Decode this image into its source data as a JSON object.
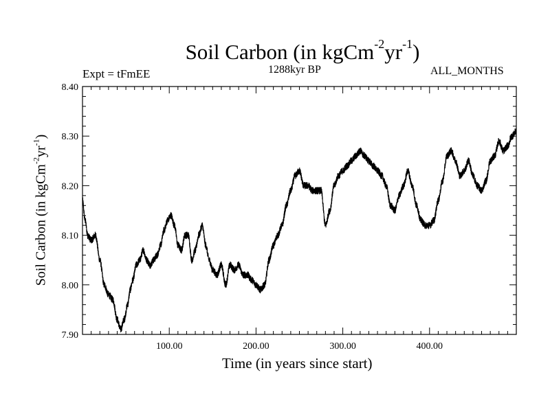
{
  "chart_data": {
    "type": "line",
    "title": "Soil Carbon (in kgCm",
    "title_sup1": "-2",
    "title_mid": "yr",
    "title_sup2": "-1",
    "title_end": ")",
    "experiment": "Expt = tFmEE",
    "subtitle": "1288kyr BP",
    "period": "ALL_MONTHS",
    "xlabel": "Time (in years since start)",
    "ylabel": "Soil Carbon (in kgCm",
    "ylabel_sup1": "-2",
    "ylabel_mid": "yr",
    "ylabel_sup2": "-1",
    "ylabel_end": ")",
    "xlim": [
      0,
      500
    ],
    "ylim": [
      7.9,
      8.4
    ],
    "x_ticks": [
      {
        "value": 100,
        "label": "100.00"
      },
      {
        "value": 200,
        "label": "200.00"
      },
      {
        "value": 300,
        "label": "300.00"
      },
      {
        "value": 400,
        "label": "400.00"
      }
    ],
    "y_ticks": [
      {
        "value": 7.9,
        "label": "7.90"
      },
      {
        "value": 8.0,
        "label": "8.00"
      },
      {
        "value": 8.1,
        "label": "8.10"
      },
      {
        "value": 8.2,
        "label": "8.20"
      },
      {
        "value": 8.3,
        "label": "8.30"
      },
      {
        "value": 8.4,
        "label": "8.40"
      }
    ],
    "noise_amplitude": 0.007,
    "series": [
      {
        "name": "Soil Carbon",
        "x": [
          0,
          3,
          6,
          10,
          15,
          20,
          25,
          30,
          35,
          40,
          44,
          48,
          52,
          55,
          58,
          62,
          66,
          70,
          74,
          78,
          82,
          86,
          90,
          94,
          98,
          102,
          106,
          110,
          114,
          118,
          122,
          126,
          130,
          134,
          138,
          142,
          146,
          150,
          155,
          160,
          165,
          170,
          175,
          180,
          185,
          190,
          195,
          200,
          205,
          210,
          215,
          220,
          225,
          230,
          235,
          240,
          245,
          250,
          255,
          260,
          265,
          270,
          275,
          280,
          285,
          290,
          295,
          300,
          305,
          310,
          315,
          320,
          325,
          330,
          335,
          340,
          345,
          350,
          355,
          360,
          365,
          370,
          375,
          380,
          385,
          390,
          395,
          400,
          405,
          410,
          415,
          420,
          425,
          430,
          435,
          440,
          445,
          450,
          455,
          460,
          465,
          470,
          475,
          480,
          485,
          490,
          495,
          500
        ],
        "values": [
          8.17,
          8.13,
          8.1,
          8.09,
          8.1,
          8.05,
          8.0,
          7.98,
          7.97,
          7.93,
          7.91,
          7.93,
          7.96,
          7.99,
          8.01,
          8.04,
          8.05,
          8.07,
          8.05,
          8.04,
          8.05,
          8.06,
          8.08,
          8.11,
          8.13,
          8.14,
          8.12,
          8.08,
          8.07,
          8.1,
          8.1,
          8.05,
          8.07,
          8.1,
          8.12,
          8.08,
          8.05,
          8.03,
          8.02,
          8.04,
          8.0,
          8.04,
          8.03,
          8.04,
          8.02,
          8.02,
          8.01,
          8.0,
          7.99,
          8.0,
          8.05,
          8.08,
          8.1,
          8.12,
          8.16,
          8.19,
          8.22,
          8.23,
          8.2,
          8.2,
          8.19,
          8.19,
          8.19,
          8.12,
          8.15,
          8.2,
          8.22,
          8.23,
          8.24,
          8.25,
          8.26,
          8.27,
          8.26,
          8.25,
          8.24,
          8.23,
          8.22,
          8.2,
          8.16,
          8.15,
          8.18,
          8.2,
          8.23,
          8.2,
          8.16,
          8.13,
          8.12,
          8.12,
          8.13,
          8.17,
          8.21,
          8.26,
          8.27,
          8.25,
          8.22,
          8.23,
          8.25,
          8.22,
          8.2,
          8.19,
          8.21,
          8.25,
          8.26,
          8.29,
          8.27,
          8.28,
          8.3,
          8.31
        ]
      }
    ]
  }
}
